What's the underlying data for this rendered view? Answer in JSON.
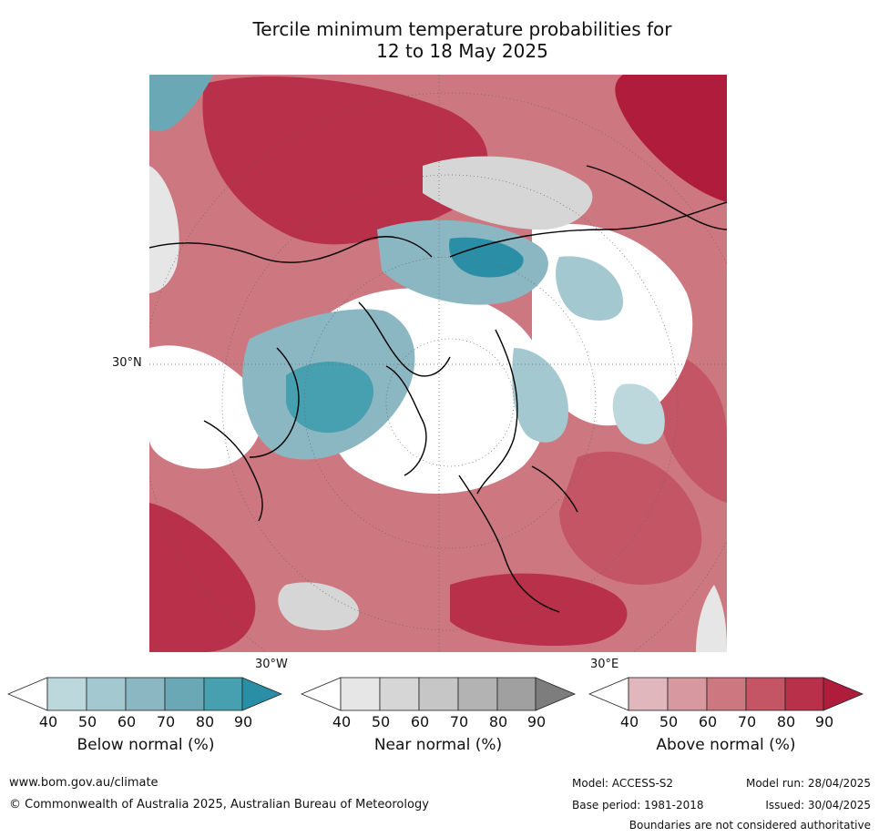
{
  "title_line1": "Tercile minimum temperature probabilities for",
  "title_line2": "12 to 18 May 2025",
  "map": {
    "lat_label": "30°N",
    "lon_label_west": "30°W",
    "lon_label_east": "30°E",
    "colors": {
      "above": [
        "#e0b7bc",
        "#d7999f",
        "#cd7780",
        "#c45565",
        "#b8304a",
        "#b01c3c"
      ],
      "near": [
        "#e6e6e6",
        "#d6d6d6",
        "#c6c6c6",
        "#b3b3b3",
        "#a0a0a0",
        "#7d7d7d"
      ],
      "below": [
        "#bdd8dc",
        "#a4c8cf",
        "#8bb7c2",
        "#6aa8b5",
        "#47a0b0",
        "#2a8fa6"
      ]
    }
  },
  "colorbars": [
    {
      "id": "below",
      "title": "Below normal (%)",
      "ticks": [
        "40",
        "50",
        "60",
        "70",
        "80",
        "90"
      ],
      "colors": [
        "#ffffff",
        "#bdd8dc",
        "#a4c8cf",
        "#8bb7c2",
        "#6aa8b5",
        "#47a0b0",
        "#2a8fa6"
      ]
    },
    {
      "id": "near",
      "title": "Near normal (%)",
      "ticks": [
        "40",
        "50",
        "60",
        "70",
        "80",
        "90"
      ],
      "colors": [
        "#ffffff",
        "#e6e6e6",
        "#d6d6d6",
        "#c6c6c6",
        "#b3b3b3",
        "#a0a0a0",
        "#7d7d7d"
      ]
    },
    {
      "id": "above",
      "title": "Above normal (%)",
      "ticks": [
        "40",
        "50",
        "60",
        "70",
        "80",
        "90"
      ],
      "colors": [
        "#ffffff",
        "#e0b7bc",
        "#d7999f",
        "#cd7780",
        "#c45565",
        "#b8304a",
        "#b01c3c"
      ]
    }
  ],
  "footer": {
    "website": "www.bom.gov.au/climate",
    "copyright": "© Commonwealth of Australia 2025, Australian Bureau of Meteorology",
    "model": "Model: ACCESS-S2",
    "base_period": "Base period: 1981-2018",
    "model_run": "Model run: 28/04/2025",
    "issued": "Issued: 30/04/2025",
    "disclaimer": "Boundaries are not considered authoritative"
  }
}
